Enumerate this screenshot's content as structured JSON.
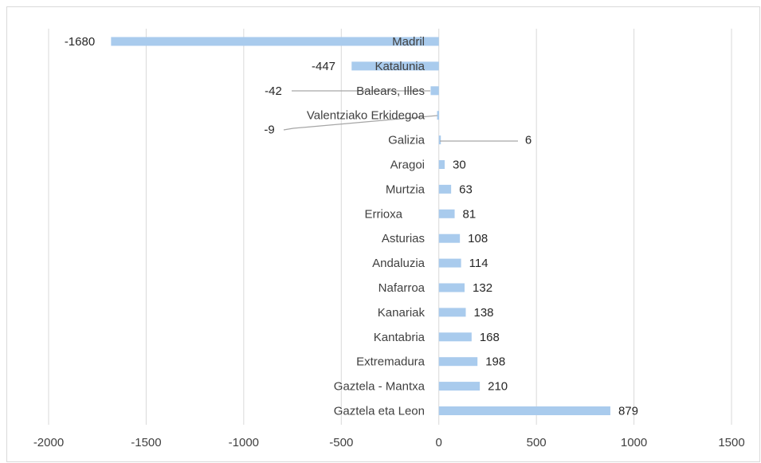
{
  "chart_data": {
    "type": "bar",
    "orientation": "horizontal",
    "title": "",
    "xlabel": "",
    "ylabel": "",
    "xlim": [
      -2000,
      1500
    ],
    "x_ticks": [
      -2000,
      -1500,
      -1000,
      -500,
      0,
      500,
      1000,
      1500
    ],
    "x_tick_labels": [
      "-2000",
      "-1500",
      "-1000",
      "-500",
      "0",
      "500",
      "1000",
      "1500"
    ],
    "grid": "vertical gridlines",
    "legend": "none",
    "bar_color": "#a9cbed",
    "grid_color": "#d9d9d9",
    "leader_color": "#a6a6a6",
    "categories": [
      "Madril",
      "Katalunia",
      "Balears, Illes",
      "Valentziako Erkidegoa",
      "Galizia",
      "Aragoi",
      "Murtzia",
      "Errioxa",
      "Asturias",
      "Andaluzia",
      "Nafarroa",
      "Kanariak",
      "Kantabria",
      "Extremadura",
      "Gaztela - Mantxa",
      "Gaztela eta Leon"
    ],
    "values": [
      -1680,
      -447,
      -42,
      -9,
      6,
      30,
      63,
      81,
      108,
      114,
      132,
      138,
      168,
      198,
      210,
      879
    ],
    "data_labels": [
      "-1680",
      "-447",
      "-42",
      "-9",
      "6",
      "30",
      "63",
      "81",
      "108",
      "114",
      "132",
      "138",
      "168",
      "198",
      "210",
      "879"
    ]
  }
}
